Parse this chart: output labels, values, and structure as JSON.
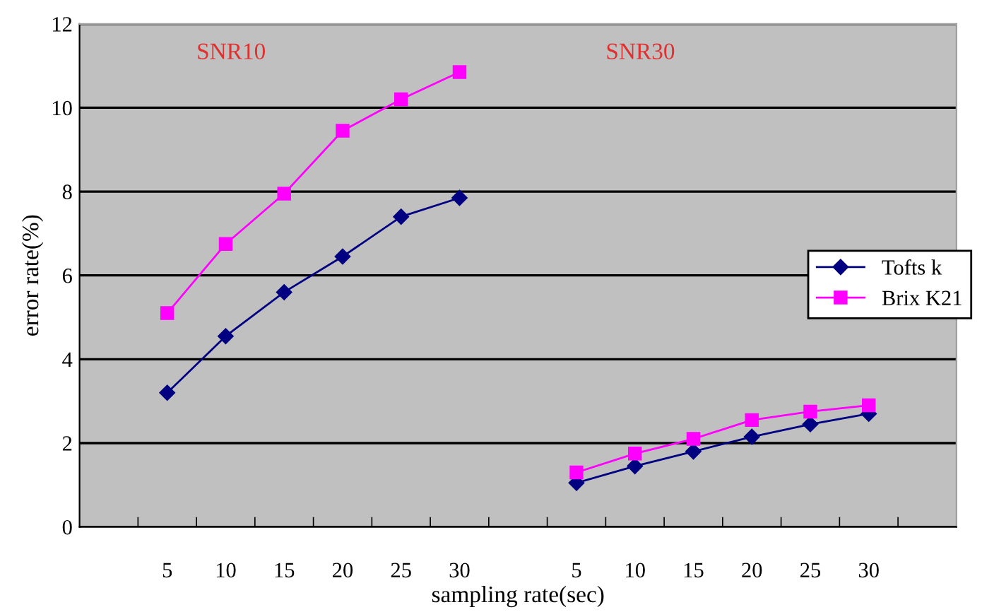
{
  "chart_data": {
    "type": "line",
    "xlabel": "sampling rate(sec)",
    "ylabel": "error rate(%)",
    "categories": [
      null,
      "5",
      "10",
      "15",
      "20",
      "25",
      "30",
      null,
      "5",
      "10",
      "15",
      "20",
      "25",
      "30",
      null
    ],
    "series": [
      {
        "name": "Tofts k",
        "color": "#000080",
        "marker": "diamond",
        "values": [
          null,
          3.2,
          4.55,
          5.6,
          6.45,
          7.4,
          7.85,
          null,
          1.05,
          1.45,
          1.8,
          2.15,
          2.45,
          2.7,
          null
        ]
      },
      {
        "name": "Brix K21",
        "color": "#ff00ff",
        "marker": "square",
        "values": [
          null,
          5.1,
          6.75,
          7.95,
          9.45,
          10.2,
          10.85,
          null,
          1.3,
          1.75,
          2.1,
          2.55,
          2.75,
          2.9,
          null
        ]
      }
    ],
    "annotations": [
      "SNR10",
      "SNR30"
    ],
    "ylim": [
      0,
      12
    ],
    "yticks": [
      0,
      2,
      4,
      6,
      8,
      10,
      12
    ],
    "grid": "y",
    "legend": "right",
    "line_style": "solid"
  }
}
